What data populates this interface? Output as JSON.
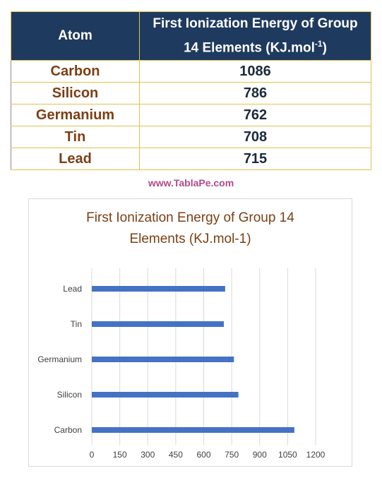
{
  "table": {
    "header_atom": "Atom",
    "header_energy_line1": "First Ionization Energy of Group",
    "header_energy_line2": "14 Elements (KJ.mol",
    "header_energy_sup": "-1",
    "header_energy_close": ")",
    "rows": [
      {
        "atom": "Carbon",
        "value": "1086"
      },
      {
        "atom": "Silicon",
        "value": "786"
      },
      {
        "atom": "Germanium",
        "value": "762"
      },
      {
        "atom": "Tin",
        "value": "708"
      },
      {
        "atom": "Lead",
        "value": "715"
      }
    ]
  },
  "watermark": "www.TablaPe.com",
  "chart_data": {
    "type": "bar",
    "orientation": "horizontal",
    "title_line1": "First Ionization Energy of Group 14",
    "title_line2": "Elements (KJ.mol-1)",
    "categories": [
      "Carbon",
      "Silicon",
      "Germanium",
      "Tin",
      "Lead"
    ],
    "values": [
      1086,
      786,
      762,
      708,
      715
    ],
    "xlim": [
      0,
      1200
    ],
    "xticks": [
      0,
      150,
      300,
      450,
      600,
      750,
      900,
      1050,
      1200
    ],
    "grid": "vertical",
    "bar_color": "#4472c4",
    "grid_color": "#d9d9d9"
  }
}
